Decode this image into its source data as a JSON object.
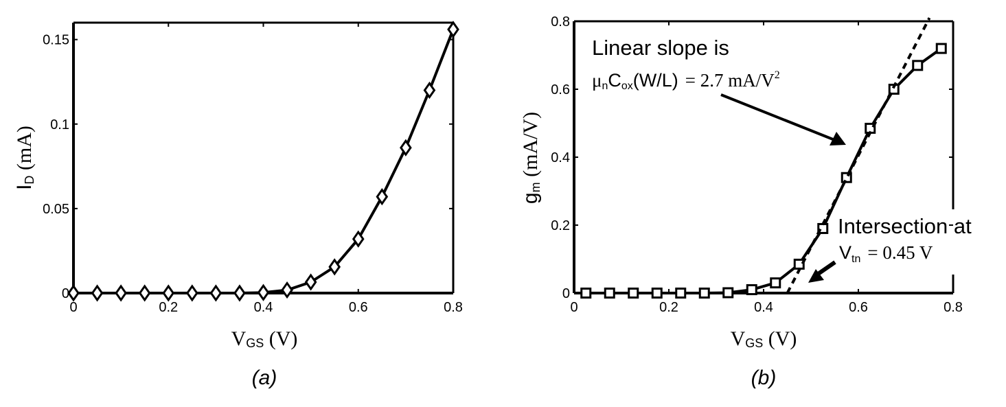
{
  "chart_data": [
    {
      "type": "line",
      "x": [
        0,
        0.05,
        0.1,
        0.15,
        0.2,
        0.25,
        0.3,
        0.35,
        0.4,
        0.45,
        0.5,
        0.55,
        0.6,
        0.65,
        0.7,
        0.75,
        0.8
      ],
      "series": [
        {
          "values": [
            0,
            0,
            0,
            0,
            0,
            0,
            0,
            0,
            0.0003,
            0.0018,
            0.0065,
            0.0155,
            0.032,
            0.057,
            0.086,
            0.12,
            0.156
          ],
          "marker": "diamond"
        }
      ],
      "xlim": [
        0,
        0.8
      ],
      "ylim": [
        0,
        0.16
      ],
      "xticks": [
        "0",
        "0.2",
        "0.4",
        "0.6",
        "0.8"
      ],
      "yticks": [
        "0",
        "0.05",
        "0.1",
        "0.15"
      ],
      "xlabel": {
        "main": "V",
        "sub": "GS",
        "unit": " (V)"
      },
      "ylabel": {
        "main": "I",
        "sub": "D",
        "unit": " (mA)"
      },
      "caption": "(a)"
    },
    {
      "type": "line",
      "x": [
        0.025,
        0.075,
        0.125,
        0.175,
        0.225,
        0.275,
        0.325,
        0.375,
        0.425,
        0.475,
        0.525,
        0.575,
        0.625,
        0.675,
        0.725,
        0.775
      ],
      "series": [
        {
          "values": [
            0,
            0,
            0,
            0,
            0,
            0,
            0.001,
            0.01,
            0.03,
            0.085,
            0.19,
            0.34,
            0.485,
            0.6,
            0.67,
            0.72
          ],
          "marker": "square"
        },
        {
          "x": [
            0.45,
            0.75
          ],
          "values": [
            0,
            0.81
          ],
          "style": "dashed"
        }
      ],
      "xlim": [
        0,
        0.8
      ],
      "ylim": [
        0,
        0.8
      ],
      "xticks": [
        "0",
        "0.2",
        "0.4",
        "0.6",
        "0.8"
      ],
      "yticks": [
        "0",
        "0.2",
        "0.4",
        "0.6",
        "0.8"
      ],
      "xlabel": {
        "main": "V",
        "sub": "GS",
        "unit": " (V)"
      },
      "ylabel": {
        "main": "g",
        "sub": "m",
        "unit": " (mA/V)"
      },
      "caption": "(b)",
      "annotations": {
        "slope_title": "Linear slope is",
        "slope_mu": "μ",
        "slope_mu_sub": "n",
        "slope_c": "C",
        "slope_c_sub": "ox",
        "slope_wl": "(W/L)",
        "slope_eq": "= 2.7 mA/V",
        "slope_exp": "2",
        "intersect_title": "Intersection at",
        "intersect_v": "V",
        "intersect_sub": "tn",
        "intersect_eq": "= 0.45 V"
      }
    }
  ]
}
